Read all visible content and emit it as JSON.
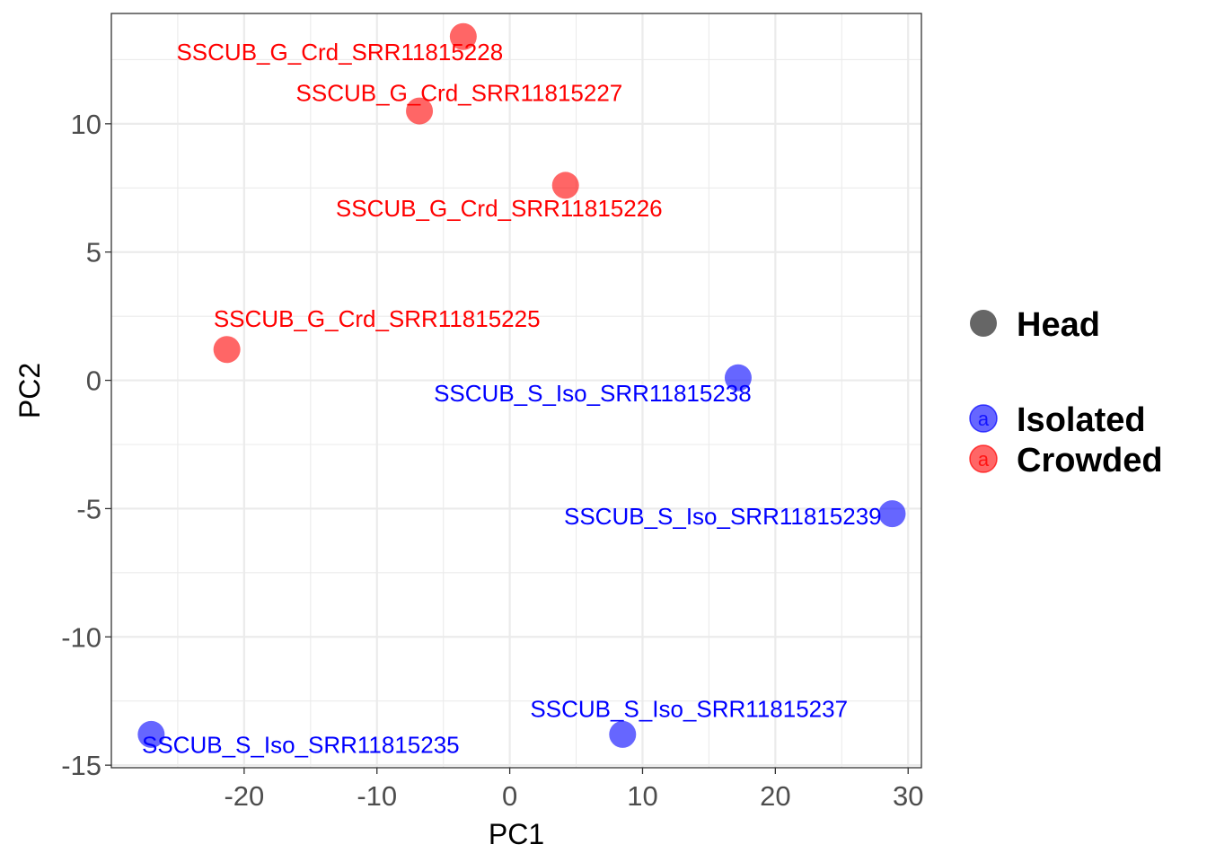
{
  "chart_data": {
    "type": "scatter",
    "title": "",
    "xlabel": "PC1",
    "ylabel": "PC2",
    "xlim": [
      -30,
      31
    ],
    "ylim": [
      -15.1,
      14.3
    ],
    "x_ticks": [
      -20,
      -10,
      0,
      10,
      20,
      30
    ],
    "x_tick_labels": [
      "-20",
      "-10",
      "0",
      "10",
      "20",
      "30"
    ],
    "y_ticks": [
      -15,
      -10,
      -5,
      0,
      5,
      10
    ],
    "y_tick_labels": [
      "-15",
      "-10",
      "-5",
      "0",
      "5",
      "10"
    ],
    "grid": true,
    "legend_position": "right",
    "legend": {
      "shape_title": "Head",
      "color_entries": [
        {
          "label": "Isolated",
          "color": "#0000ff"
        },
        {
          "label": "Crowded",
          "color": "#ff0000"
        }
      ],
      "key_glyph": "a"
    },
    "series": [
      {
        "name": "Crowded",
        "color": "#ff0000",
        "points": [
          {
            "x": -3.5,
            "y": 13.4,
            "label": "SSCUB_G_Crd_SRR11815228",
            "label_anchor": "end",
            "label_dx": 3,
            "label_dy": -0.6
          },
          {
            "x": -6.8,
            "y": 10.5,
            "label": "SSCUB_G_Crd_SRR11815227",
            "label_anchor": "middle",
            "label_dx": 3,
            "label_dy": 0.7
          },
          {
            "x": 4.2,
            "y": 7.6,
            "label": "SSCUB_G_Crd_SRR11815226",
            "label_anchor": "middle",
            "label_dx": -5,
            "label_dy": -0.9
          },
          {
            "x": -21.3,
            "y": 1.2,
            "label": "SSCUB_G_Crd_SRR11815225",
            "label_anchor": "start",
            "label_dx": -1,
            "label_dy": 1.2
          }
        ]
      },
      {
        "name": "Isolated",
        "color": "#0000ff",
        "points": [
          {
            "x": 17.2,
            "y": 0.1,
            "label": "SSCUB_S_Iso_SRR11815238",
            "label_anchor": "end",
            "label_dx": 1,
            "label_dy": -0.6
          },
          {
            "x": 28.8,
            "y": -5.2,
            "label": "SSCUB_S_Iso_SRR11815239",
            "label_anchor": "end",
            "label_dx": -0.8,
            "label_dy": -0.1
          },
          {
            "x": 8.5,
            "y": -13.8,
            "label": "SSCUB_S_Iso_SRR11815237",
            "label_anchor": "middle",
            "label_dx": 5,
            "label_dy": 1.0
          },
          {
            "x": -27.0,
            "y": -13.8,
            "label": "SSCUB_S_Iso_SRR11815235",
            "label_anchor": "start",
            "label_dx": -0.7,
            "label_dy": -0.4
          }
        ]
      }
    ]
  }
}
